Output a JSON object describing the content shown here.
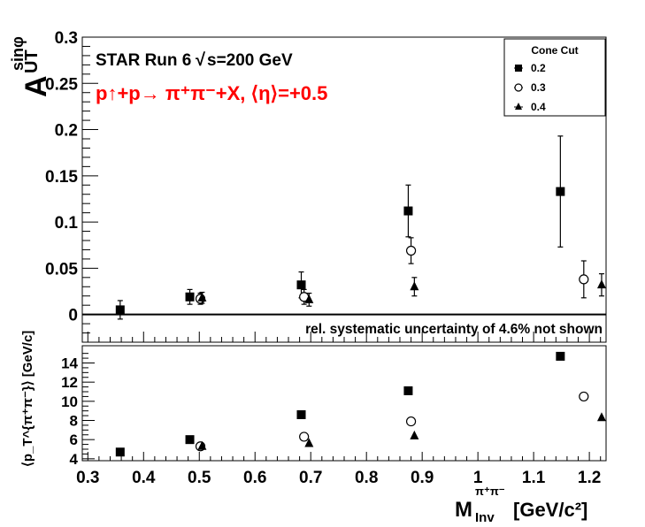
{
  "chart_data": [
    {
      "type": "scatter",
      "panel": "top",
      "ylabel_main": "A",
      "ylabel_sup": "sinφ",
      "ylabel_sub": "UT",
      "yticks": [
        "0",
        "0.05",
        "0.1",
        "0.15",
        "0.2",
        "0.25",
        "0.3"
      ],
      "ylim": [
        -0.03,
        0.3
      ],
      "xlim": [
        0.29,
        1.23
      ],
      "xticks": [
        "0.3",
        "0.4",
        "0.5",
        "0.6",
        "0.7",
        "0.8",
        "0.9",
        "1",
        "1.1",
        "1.2"
      ],
      "annotation_run": "STAR Run 6",
      "annotation_energy": "s=200 GeV",
      "annotation_reaction": "p↑+p→ π⁺π⁻+X, ⟨η⟩=+0.5",
      "reaction_color": "#ff0000",
      "annotation_syst": "rel. systematic uncertainty of 4.6% not shown",
      "legend_title": "Cone Cut",
      "legend_position": "top-right",
      "series": [
        {
          "name": "0.2",
          "marker": "square",
          "x": [
            0.358,
            0.483,
            0.683,
            0.875,
            1.148
          ],
          "y": [
            0.005,
            0.019,
            0.032,
            0.112,
            0.133
          ],
          "err": [
            0.01,
            0.008,
            0.014,
            0.028,
            0.06
          ]
        },
        {
          "name": "0.3",
          "marker": "circle",
          "x": [
            0.502,
            0.688,
            0.88,
            1.19
          ],
          "y": [
            0.017,
            0.019,
            0.069,
            0.038
          ],
          "err": [
            0.006,
            0.008,
            0.014,
            0.02
          ]
        },
        {
          "name": "0.4",
          "marker": "triangle",
          "x": [
            0.505,
            0.697,
            0.886,
            1.222
          ],
          "y": [
            0.018,
            0.016,
            0.03,
            0.032
          ],
          "err": [
            0.006,
            0.007,
            0.01,
            0.012
          ]
        }
      ]
    },
    {
      "type": "scatter",
      "panel": "bottom",
      "ylabel": "⟨p_T^{π⁺π⁻}⟩ [GeV/c]",
      "yticks": [
        "4",
        "6",
        "8",
        "10",
        "12",
        "14"
      ],
      "ylim": [
        3.8,
        15.8
      ],
      "xlim": [
        0.29,
        1.23
      ],
      "xlabel_main": "M",
      "xlabel_sup": "π⁺π⁻",
      "xlabel_sub": "Inv",
      "xlabel_unit": "[GeV/c²]",
      "series": [
        {
          "name": "0.2",
          "marker": "square",
          "x": [
            0.358,
            0.483,
            0.683,
            0.875,
            1.148
          ],
          "y": [
            4.7,
            6.0,
            8.6,
            11.1,
            14.7
          ]
        },
        {
          "name": "0.3",
          "marker": "circle",
          "x": [
            0.502,
            0.688,
            0.88,
            1.19
          ],
          "y": [
            5.3,
            6.3,
            7.9,
            10.5
          ]
        },
        {
          "name": "0.4",
          "marker": "triangle",
          "x": [
            0.505,
            0.697,
            0.886,
            1.222
          ],
          "y": [
            5.3,
            5.6,
            6.4,
            8.3
          ]
        }
      ]
    }
  ]
}
